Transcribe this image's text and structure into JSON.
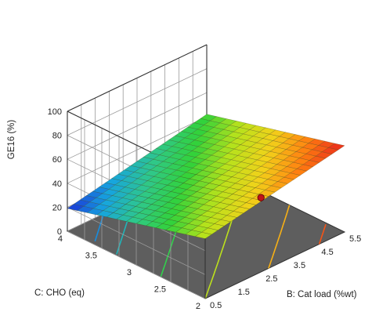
{
  "chart_data": {
    "type": "surface3d",
    "title": "",
    "xlabel": "B: Cat load (%wt)",
    "ylabel": "C: CHO (eq)",
    "zlabel": "GE16 (%)",
    "x_ticks": [
      "0.5",
      "1.5",
      "2.5",
      "3.5",
      "4.5",
      "5.5"
    ],
    "y_ticks": [
      "2",
      "2.5",
      "3",
      "3.5",
      "4"
    ],
    "z_ticks": [
      "0",
      "20",
      "40",
      "60",
      "80",
      "100"
    ],
    "xlim": [
      0.5,
      5.5
    ],
    "ylim": [
      2,
      4
    ],
    "zlim": [
      0,
      100
    ],
    "surface_corners": [
      {
        "x": 0.5,
        "y": 2,
        "z": 50
      },
      {
        "x": 5.5,
        "y": 2,
        "z": 72
      },
      {
        "x": 0.5,
        "y": 4,
        "z": 19
      },
      {
        "x": 5.5,
        "y": 4,
        "z": 42
      }
    ],
    "design_point": {
      "x": 2.5,
      "y": 2,
      "z": 62
    },
    "colormap": [
      "#1a2fd6",
      "#16a4e0",
      "#2fc88a",
      "#32d23a",
      "#b6e21c",
      "#f2d21a",
      "#ff7f10",
      "#e8241c"
    ],
    "floor_color": "#5e5e5e",
    "grid": true
  }
}
